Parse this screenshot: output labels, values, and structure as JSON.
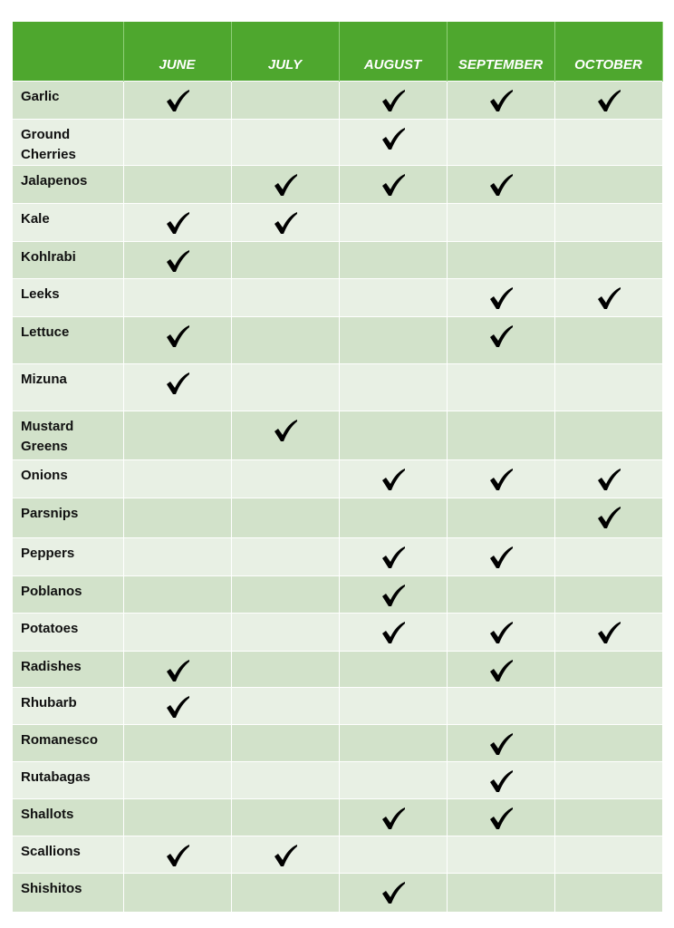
{
  "header": {
    "months": [
      "JUNE",
      "JULY",
      "AUGUST",
      "SEPTEMBER",
      "OCTOBER"
    ]
  },
  "rows": [
    {
      "name": "Garlic",
      "checks": [
        true,
        false,
        true,
        true,
        true
      ]
    },
    {
      "name": "Ground Cherries",
      "checks": [
        false,
        false,
        true,
        false,
        false
      ]
    },
    {
      "name": "Jalapenos",
      "checks": [
        false,
        true,
        true,
        true,
        false
      ]
    },
    {
      "name": "Kale",
      "checks": [
        true,
        true,
        false,
        false,
        false
      ]
    },
    {
      "name": "Kohlrabi",
      "checks": [
        true,
        false,
        false,
        false,
        false
      ]
    },
    {
      "name": "Leeks",
      "checks": [
        false,
        false,
        false,
        true,
        true
      ]
    },
    {
      "name": "Lettuce",
      "checks": [
        true,
        false,
        false,
        true,
        false
      ]
    },
    {
      "name": "Mizuna",
      "checks": [
        true,
        false,
        false,
        false,
        false
      ]
    },
    {
      "name": "Mustard Greens",
      "checks": [
        false,
        true,
        false,
        false,
        false
      ]
    },
    {
      "name": "Onions",
      "checks": [
        false,
        false,
        true,
        true,
        true
      ]
    },
    {
      "name": "Parsnips",
      "checks": [
        false,
        false,
        false,
        false,
        true
      ]
    },
    {
      "name": "Peppers",
      "checks": [
        false,
        false,
        true,
        true,
        false
      ]
    },
    {
      "name": "Poblanos",
      "checks": [
        false,
        false,
        true,
        false,
        false
      ]
    },
    {
      "name": "Potatoes",
      "checks": [
        false,
        false,
        true,
        true,
        true
      ]
    },
    {
      "name": "Radishes",
      "checks": [
        true,
        false,
        false,
        true,
        false
      ]
    },
    {
      "name": "Rhubarb",
      "checks": [
        true,
        false,
        false,
        false,
        false
      ]
    },
    {
      "name": "Romanesco",
      "checks": [
        false,
        false,
        false,
        true,
        false
      ]
    },
    {
      "name": "Rutabagas",
      "checks": [
        false,
        false,
        false,
        true,
        false
      ]
    },
    {
      "name": "Shallots",
      "checks": [
        false,
        false,
        true,
        true,
        false
      ]
    },
    {
      "name": "Scallions",
      "checks": [
        true,
        true,
        false,
        false,
        false
      ]
    },
    {
      "name": "Shishitos",
      "checks": [
        false,
        false,
        true,
        false,
        false
      ]
    }
  ],
  "icons": {
    "check": "check-icon"
  },
  "colors": {
    "header": "#4ea72e",
    "row_dark": "#d2e2ca",
    "row_light": "#e8f0e4"
  }
}
